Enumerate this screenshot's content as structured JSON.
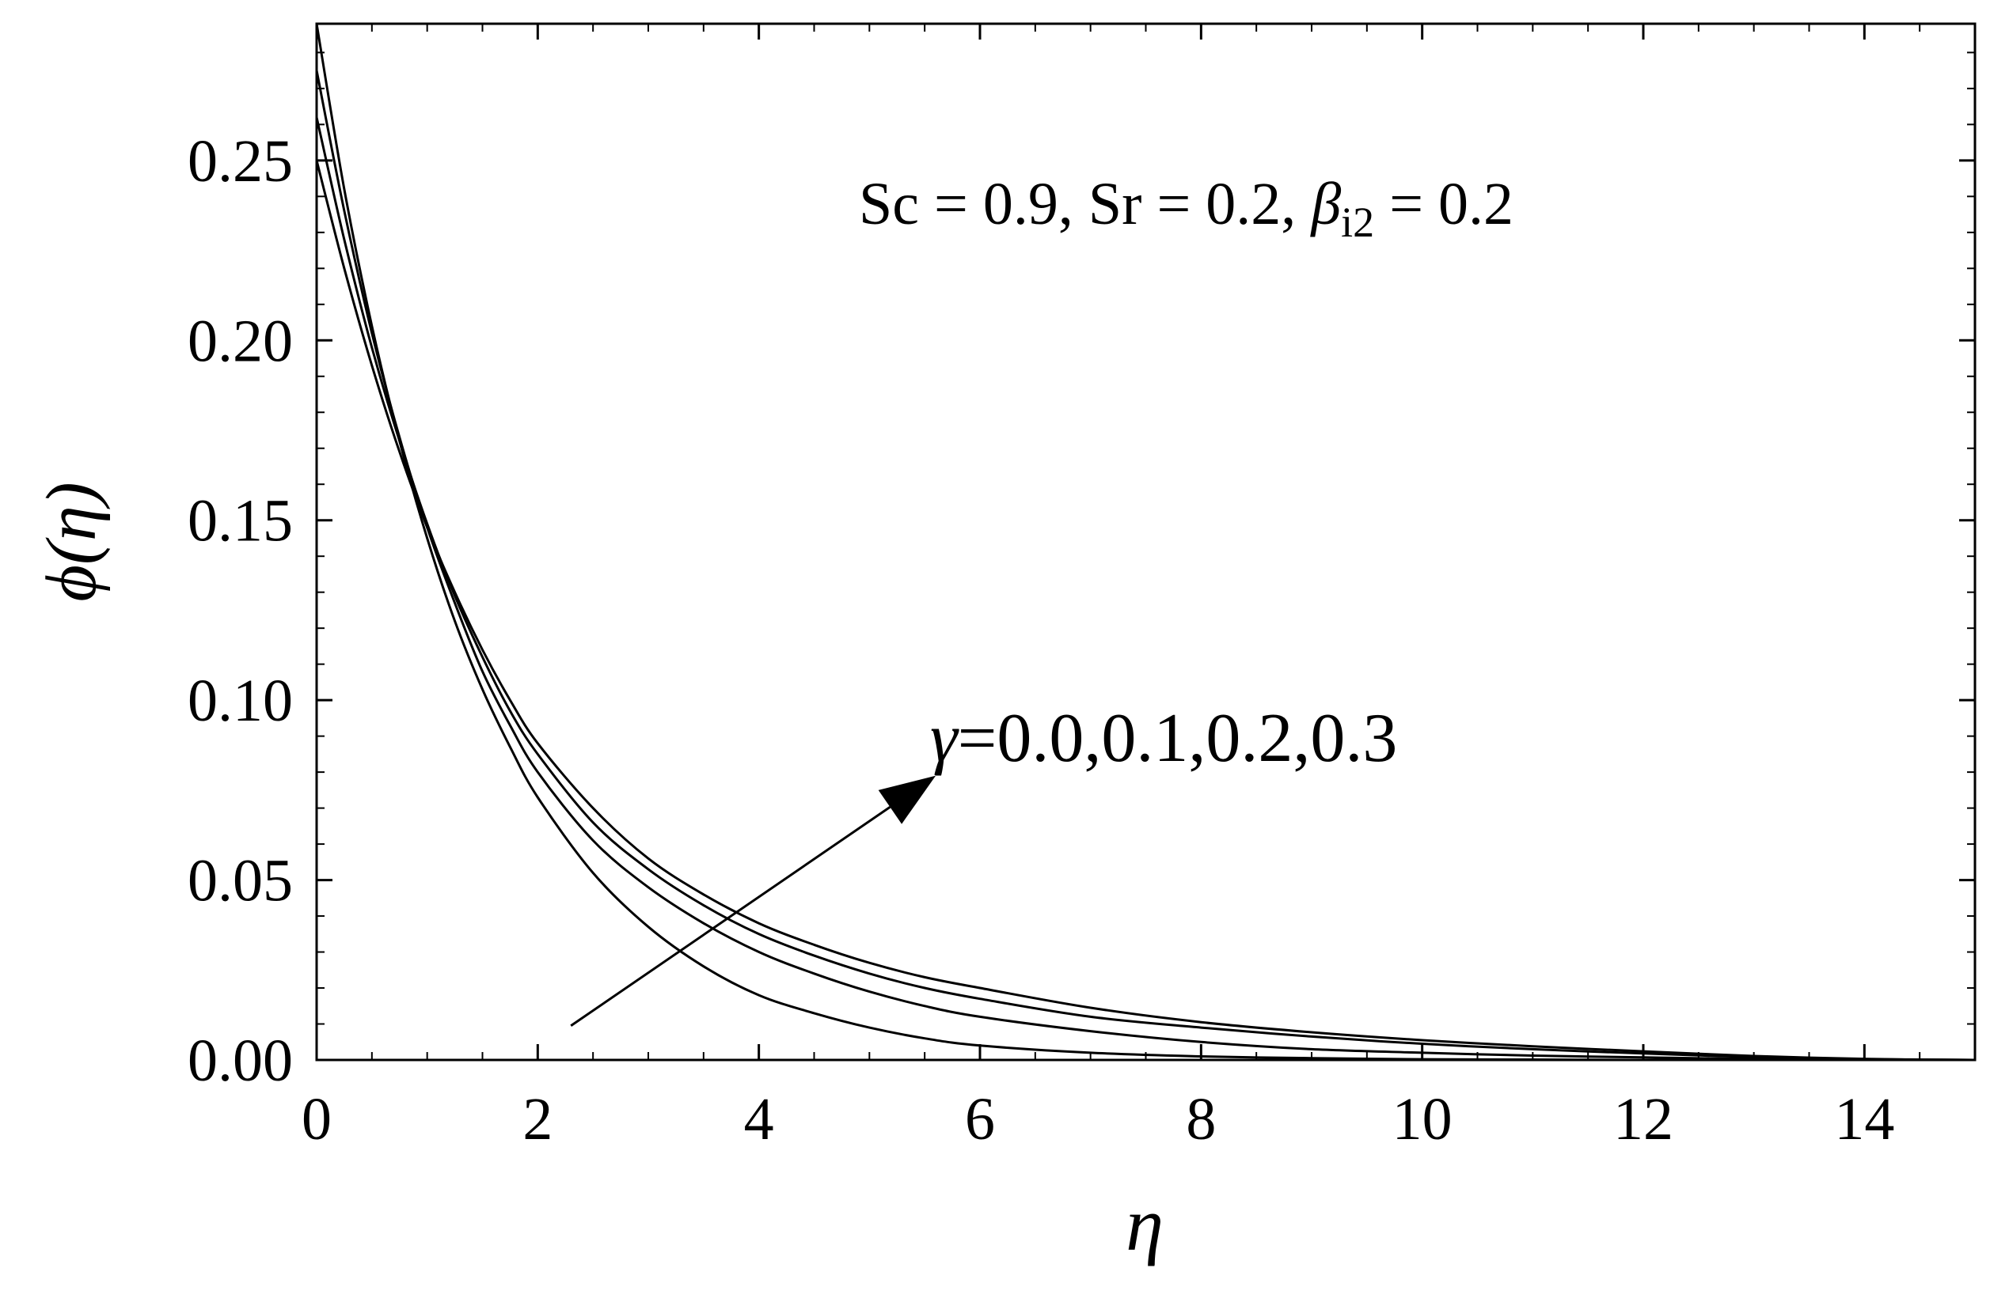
{
  "chart_data": {
    "type": "line",
    "xlabel": "η",
    "ylabel": "ϕ(η)",
    "xlim": [
      0,
      15
    ],
    "ylim": [
      0,
      0.288
    ],
    "x_ticks": [
      0,
      2,
      4,
      6,
      8,
      10,
      12,
      14
    ],
    "x_tick_labels": [
      "0",
      "2",
      "4",
      "6",
      "8",
      "10",
      "12",
      "14"
    ],
    "y_ticks": [
      0.0,
      0.05,
      0.1,
      0.15,
      0.2,
      0.25
    ],
    "y_tick_labels": [
      "0.00",
      "0.05",
      "0.10",
      "0.15",
      "0.20",
      "0.25"
    ],
    "grid": false,
    "line_color": "#000000",
    "annotations": {
      "params": {
        "sc": "Sc = 0.9, Sr = 0.2, ",
        "beta": "β",
        "beta_sub": "i2",
        "beta_val": " = 0.2"
      },
      "gamma": {
        "symbol": "γ",
        "text": "=0.0,0.1,0.2,0.3"
      },
      "arrow": {
        "from": [
          2.3,
          0.0095
        ],
        "to": [
          5.6,
          0.079
        ]
      }
    },
    "series": [
      {
        "x": [
          0,
          0.25,
          0.5,
          0.75,
          1,
          1.25,
          1.5,
          1.75,
          2,
          2.5,
          3,
          3.5,
          4,
          4.5,
          5,
          5.5,
          6,
          7,
          8,
          9,
          10,
          11,
          12,
          13,
          14,
          15
        ],
        "values": [
          0.288,
          0.242,
          0.204,
          0.172,
          0.145,
          0.122,
          0.103,
          0.087,
          0.073,
          0.052,
          0.037,
          0.026,
          0.018,
          0.013,
          0.009,
          0.006,
          0.004,
          0.002,
          0.001,
          0.0005,
          0.0002,
          0.0001,
          0.0,
          0.0,
          0.0,
          0.0
        ]
      },
      {
        "x": [
          0,
          0.25,
          0.5,
          0.75,
          1,
          1.25,
          1.5,
          1.75,
          2,
          2.5,
          3,
          3.5,
          4,
          4.5,
          5,
          5.5,
          6,
          7,
          8,
          9,
          10,
          11,
          12,
          13,
          14,
          15
        ],
        "values": [
          0.275,
          0.236,
          0.202,
          0.173,
          0.148,
          0.127,
          0.108,
          0.093,
          0.08,
          0.061,
          0.048,
          0.038,
          0.03,
          0.024,
          0.019,
          0.015,
          0.012,
          0.008,
          0.005,
          0.003,
          0.002,
          0.0012,
          0.0007,
          0.0003,
          0.0001,
          0.0
        ]
      },
      {
        "x": [
          0,
          0.25,
          0.5,
          0.75,
          1,
          1.25,
          1.5,
          1.75,
          2,
          2.5,
          3,
          3.5,
          4,
          4.5,
          5,
          5.5,
          6,
          7,
          8,
          9,
          10,
          11,
          12,
          13,
          14,
          15
        ],
        "values": [
          0.262,
          0.228,
          0.198,
          0.172,
          0.149,
          0.129,
          0.112,
          0.097,
          0.085,
          0.066,
          0.053,
          0.043,
          0.035,
          0.029,
          0.024,
          0.02,
          0.017,
          0.012,
          0.009,
          0.0065,
          0.0045,
          0.003,
          0.0018,
          0.0008,
          0.0002,
          0.0
        ]
      },
      {
        "x": [
          0,
          0.25,
          0.5,
          0.75,
          1,
          1.25,
          1.5,
          1.75,
          2,
          2.5,
          3,
          3.5,
          4,
          4.5,
          5,
          5.5,
          6,
          7,
          8,
          9,
          10,
          11,
          12,
          13,
          14,
          15
        ],
        "values": [
          0.25,
          0.22,
          0.193,
          0.169,
          0.148,
          0.13,
          0.114,
          0.1,
          0.088,
          0.07,
          0.056,
          0.046,
          0.038,
          0.032,
          0.027,
          0.023,
          0.02,
          0.0145,
          0.0105,
          0.0077,
          0.0055,
          0.0038,
          0.0024,
          0.0011,
          0.0003,
          0.0
        ]
      }
    ]
  }
}
